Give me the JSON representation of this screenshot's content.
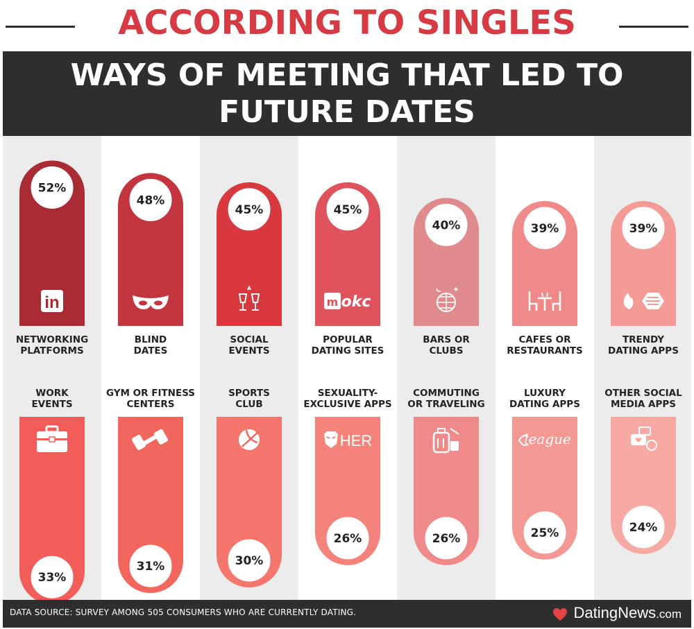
{
  "header": {
    "kicker": "ACCORDING TO SINGLES",
    "title_lines": [
      "WAYS OF MEETING THAT LED TO",
      "FUTURE DATES"
    ]
  },
  "footer": {
    "source": "DATA SOURCE: SURVEY AMONG 505 CONSUMERS WHO ARE CURRENTLY DATING.",
    "brand_main": "DatingNews",
    "brand_domain": ".com"
  },
  "colors": {
    "kicker": "#d63a43",
    "dark_band": "#2e2e2e",
    "column_shade": "#ececec",
    "bars": [
      "#a92b33",
      "#c3363f",
      "#d8393f",
      "#df545c",
      "#df8a8c",
      "#f08a8a",
      "#f49b98",
      "#f25d5a",
      "#f1665d",
      "#f4766d",
      "#f4847b",
      "#f08a8a",
      "#f49893",
      "#f7aaa4"
    ]
  },
  "chart_data": {
    "type": "bar",
    "title": "WAYS OF MEETING THAT LED TO FUTURE DATES",
    "unit": "%",
    "rows": [
      {
        "orientation": "up",
        "categories": [
          "NETWORKING PLATFORMS",
          "BLIND DATES",
          "SOCIAL EVENTS",
          "POPULAR DATING SITES",
          "BARS OR CLUBS",
          "CAFES OR RESTAURANTS",
          "TRENDY DATING APPS"
        ],
        "label_lines": [
          [
            "NETWORKING",
            "PLATFORMS"
          ],
          [
            "BLIND",
            "DATES"
          ],
          [
            "SOCIAL",
            "EVENTS"
          ],
          [
            "POPULAR",
            "DATING SITES"
          ],
          [
            "BARS OR",
            "CLUBS"
          ],
          [
            "CAFES OR",
            "RESTAURANTS"
          ],
          [
            "TRENDY",
            "DATING APPS"
          ]
        ],
        "values": [
          52,
          48,
          45,
          45,
          40,
          39,
          39
        ],
        "value_labels": [
          "52%",
          "48%",
          "45%",
          "45%",
          "40%",
          "39%",
          "39%"
        ],
        "icons": [
          "linkedin-icon",
          "mask-icon",
          "cheers-icon",
          "match-okc-icon",
          "disco-ball-icon",
          "cafe-table-icon",
          "tinder-bumble-icon"
        ]
      },
      {
        "orientation": "down",
        "categories": [
          "WORK EVENTS",
          "GYM OR FITNESS CENTERS",
          "SPORTS CLUB",
          "SEXUALITY-EXCLUSIVE APPS",
          "COMMUTING OR TRAVELING",
          "LUXURY DATING APPS",
          "OTHER SOCIAL MEDIA APPS"
        ],
        "label_lines": [
          [
            "WORK",
            "EVENTS"
          ],
          [
            "GYM OR FITNESS",
            "CENTERS"
          ],
          [
            "SPORTS",
            "CLUB"
          ],
          [
            "SEXUALITY-",
            "EXCLUSIVE APPS"
          ],
          [
            "COMMUTING",
            "OR TRAVELING"
          ],
          [
            "LUXURY",
            "DATING APPS"
          ],
          [
            "OTHER SOCIAL",
            "MEDIA APPS"
          ]
        ],
        "values": [
          33,
          31,
          30,
          26,
          26,
          25,
          24
        ],
        "value_labels": [
          "33%",
          "31%",
          "30%",
          "26%",
          "26%",
          "25%",
          "24%"
        ],
        "icons": [
          "briefcase-icon",
          "dumbbell-icon",
          "sports-ball-icon",
          "grindr-her-icon",
          "luggage-icon",
          "the-league-icon",
          "social-chat-icon"
        ]
      }
    ]
  }
}
